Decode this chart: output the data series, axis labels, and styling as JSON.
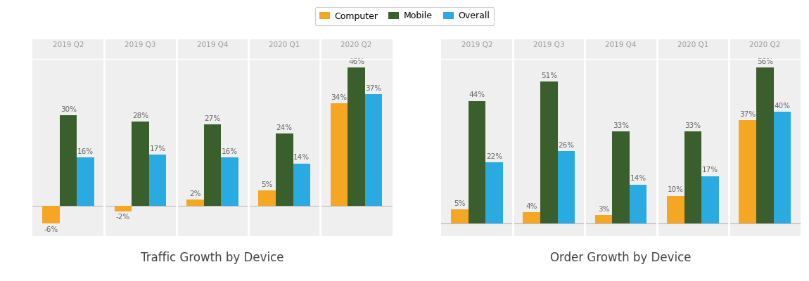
{
  "quarters": [
    "2019 Q2",
    "2019 Q3",
    "2019 Q4",
    "2020 Q1",
    "2020 Q2"
  ],
  "traffic": {
    "computer": [
      -6,
      -2,
      2,
      5,
      34
    ],
    "mobile": [
      30,
      28,
      27,
      24,
      46
    ],
    "overall": [
      16,
      17,
      16,
      14,
      37
    ]
  },
  "orders": {
    "computer": [
      5,
      4,
      3,
      10,
      37
    ],
    "mobile": [
      44,
      51,
      33,
      33,
      56
    ],
    "overall": [
      22,
      26,
      14,
      17,
      40
    ]
  },
  "colors": {
    "computer": "#F5A623",
    "mobile": "#3A5F2D",
    "overall": "#29ABE2"
  },
  "legend_labels": [
    "Computer",
    "Mobile",
    "Overall"
  ],
  "chart1_title": "Traffic Growth by Device",
  "chart2_title": "Order Growth by Device",
  "panel_bg": "#EFEFEF",
  "bar_width": 0.24,
  "label_fontsize": 7.5,
  "title_fontsize": 12,
  "quarter_fontsize": 7.5,
  "divider_color": "#FFFFFF",
  "zero_line_color": "#BBBBBB",
  "label_color": "#666666",
  "quarter_color": "#999999",
  "title_color": "#444444"
}
